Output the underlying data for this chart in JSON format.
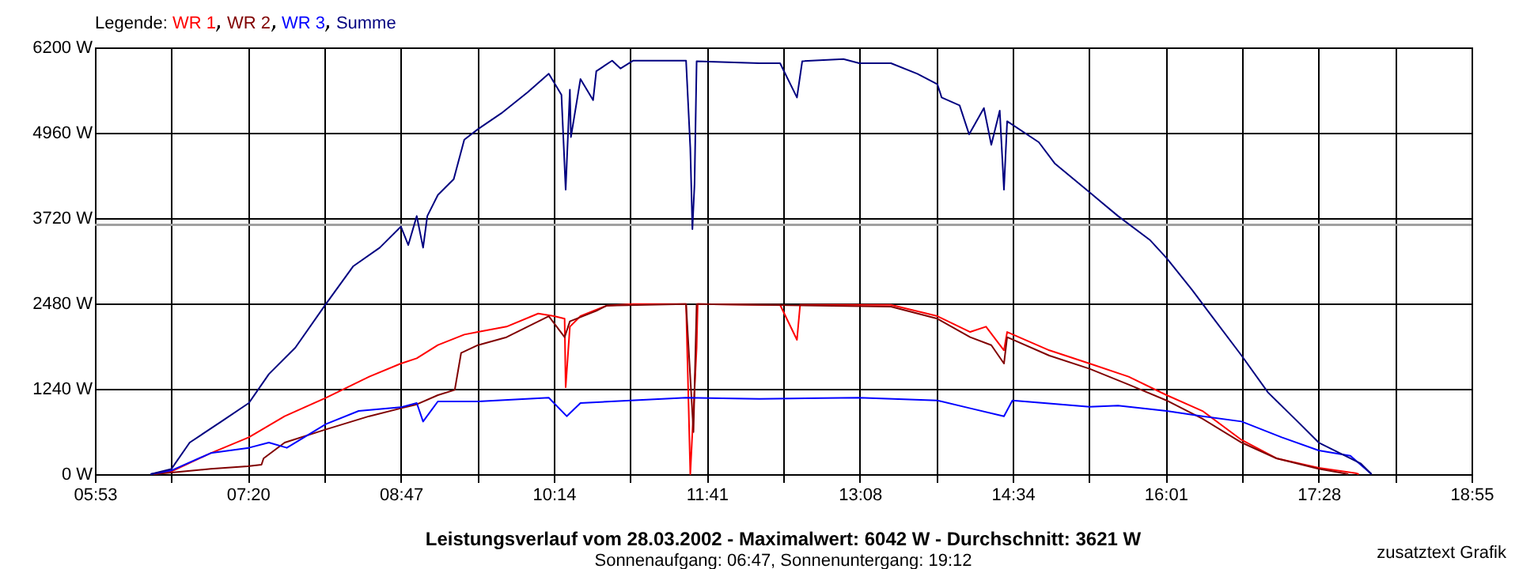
{
  "chart_data": {
    "type": "line",
    "title": "Leistungsverlauf vom 28.03.2002 - Maximalwert: 6042 W - Durchschnitt: 3621 W",
    "subtitle": "Sonnenaufgang: 06:47, Sonnenuntergang: 19:12",
    "legend_title": "Legende:",
    "legend": "top left",
    "grid": true,
    "annotations": [
      "zusatztext Grafik"
    ],
    "xlim": [
      5.883,
      18.917
    ],
    "xticks": [
      {
        "value": 5.883,
        "label": "05:53"
      },
      {
        "value": 6.607,
        "label": null
      },
      {
        "value": 7.331,
        "label": "07:20"
      },
      {
        "value": 8.055,
        "label": null
      },
      {
        "value": 8.779,
        "label": "08:47"
      },
      {
        "value": 9.504,
        "label": null
      },
      {
        "value": 10.228,
        "label": "10:14"
      },
      {
        "value": 10.952,
        "label": null
      },
      {
        "value": 11.676,
        "label": "11:41"
      },
      {
        "value": 12.4,
        "label": null
      },
      {
        "value": 13.125,
        "label": "13:08"
      },
      {
        "value": 13.849,
        "label": null
      },
      {
        "value": 14.573,
        "label": "14:34"
      },
      {
        "value": 15.297,
        "label": null
      },
      {
        "value": 16.021,
        "label": "16:01"
      },
      {
        "value": 16.745,
        "label": null
      },
      {
        "value": 17.469,
        "label": "17:28"
      },
      {
        "value": 18.193,
        "label": null
      },
      {
        "value": 18.917,
        "label": "18:55"
      }
    ],
    "ylim": [
      0,
      6200
    ],
    "yticks": [
      {
        "value": 0,
        "label": "0 W"
      },
      {
        "value": 1240,
        "label": "1240 W"
      },
      {
        "value": 2480,
        "label": "2480 W"
      },
      {
        "value": 3720,
        "label": "3720 W"
      },
      {
        "value": 4960,
        "label": "4960 W"
      },
      {
        "value": 6200,
        "label": "6200 W"
      }
    ],
    "ref_lines": [
      {
        "axis": "y",
        "value": 3621,
        "label": null,
        "color": "#a0a0a0"
      }
    ],
    "series": [
      {
        "name": "WR 1",
        "color": "#ff0000",
        "x": [
          6.44,
          6.607,
          6.98,
          7.34,
          7.68,
          8.07,
          8.48,
          8.78,
          8.93,
          9.13,
          9.38,
          9.51,
          9.78,
          10.08,
          10.23,
          10.33,
          10.34,
          10.38,
          10.48,
          10.73,
          10.98,
          11.48,
          11.52,
          11.58,
          11.59,
          12.175,
          12.37,
          12.53,
          12.56,
          13.42,
          13.86,
          14.17,
          14.32,
          14.49,
          14.52,
          14.92,
          15.3,
          15.67,
          16.03,
          16.37,
          16.74,
          17.07,
          17.47,
          17.82,
          17.85
        ],
        "values": [
          0,
          38,
          306,
          535,
          842,
          1110,
          1416,
          1607,
          1683,
          1875,
          2028,
          2066,
          2143,
          2334,
          2296,
          2258,
          1263,
          2143,
          2296,
          2449,
          2470,
          2470,
          0,
          1837,
          2470,
          2460,
          2460,
          1952,
          2460,
          2460,
          2296,
          2066,
          2143,
          1799,
          2066,
          1799,
          1607,
          1416,
          1148,
          918,
          497,
          230,
          92,
          15,
          0
        ]
      },
      {
        "name": "WR 2",
        "color": "#800000",
        "x": [
          6.44,
          6.607,
          6.98,
          7.33,
          7.46,
          7.48,
          7.68,
          8.07,
          8.48,
          8.78,
          8.93,
          9.13,
          9.29,
          9.35,
          9.51,
          9.78,
          9.98,
          10.18,
          10.33,
          10.38,
          10.63,
          10.73,
          11.48,
          11.55,
          11.58,
          12.175,
          13.42,
          13.86,
          14.17,
          14.37,
          14.49,
          14.52,
          14.92,
          15.3,
          15.67,
          16.03,
          16.37,
          16.74,
          17.07,
          17.47,
          17.67,
          17.75
        ],
        "values": [
          0,
          23,
          77,
          115,
          138,
          230,
          459,
          650,
          842,
          957,
          1014,
          1148,
          1224,
          1760,
          1875,
          1990,
          2143,
          2296,
          1990,
          2220,
          2372,
          2449,
          2470,
          612,
          2470,
          2460,
          2434,
          2258,
          1990,
          1875,
          1607,
          1990,
          1722,
          1531,
          1301,
          1071,
          804,
          459,
          230,
          77,
          23,
          0
        ]
      },
      {
        "name": "WR 3",
        "color": "#0000ff",
        "x": [
          6.41,
          6.607,
          6.98,
          7.34,
          7.53,
          7.7,
          8.07,
          8.38,
          8.78,
          8.93,
          8.99,
          9.13,
          9.51,
          10.18,
          10.35,
          10.48,
          11.48,
          12.175,
          13.12,
          13.86,
          14.17,
          14.49,
          14.57,
          15.3,
          15.57,
          16.03,
          16.37,
          16.74,
          17.12,
          17.47,
          17.77,
          17.97
        ],
        "values": [
          0,
          54,
          306,
          383,
          459,
          383,
          727,
          918,
          972,
          1033,
          765,
          1056,
          1056,
          1110,
          842,
          1033,
          1110,
          1094,
          1110,
          1071,
          957,
          842,
          1071,
          980,
          995,
          918,
          842,
          765,
          535,
          344,
          268,
          0
        ]
      },
      {
        "name": "Summe",
        "color": "#000080",
        "x": [
          6.41,
          6.607,
          6.78,
          7.08,
          7.34,
          7.53,
          7.78,
          8.07,
          8.33,
          8.58,
          8.78,
          8.85,
          8.93,
          8.99,
          9.03,
          9.13,
          9.28,
          9.38,
          9.51,
          9.73,
          9.98,
          10.18,
          10.3,
          10.34,
          10.38,
          10.39,
          10.48,
          10.6,
          10.63,
          10.78,
          10.86,
          10.98,
          11.48,
          11.52,
          11.54,
          11.56,
          11.58,
          12.175,
          12.37,
          12.53,
          12.58,
          12.97,
          13.12,
          13.42,
          13.67,
          13.86,
          13.9,
          14.07,
          14.16,
          14.3,
          14.37,
          14.45,
          14.49,
          14.52,
          14.82,
          14.97,
          15.3,
          15.57,
          15.87,
          16.03,
          16.27,
          16.42,
          16.74,
          16.99,
          17.27,
          17.47,
          17.67,
          17.87,
          17.97
        ],
        "values": [
          0,
          76,
          459,
          765,
          1033,
          1454,
          1837,
          2472,
          3023,
          3291,
          3597,
          3329,
          3750,
          3291,
          3750,
          4056,
          4286,
          4860,
          5013,
          5242,
          5549,
          5817,
          5510,
          4133,
          5587,
          4898,
          5740,
          5434,
          5855,
          6008,
          5894,
          6008,
          6008,
          4745,
          3560,
          4210,
          6000,
          5970,
          5970,
          5472,
          6000,
          6030,
          5970,
          5970,
          5817,
          5664,
          5472,
          5358,
          4937,
          5319,
          4784,
          5281,
          4133,
          5127,
          4822,
          4516,
          4095,
          3750,
          3405,
          3138,
          2679,
          2372,
          1722,
          1187,
          765,
          459,
          306,
          153,
          0
        ]
      }
    ]
  }
}
